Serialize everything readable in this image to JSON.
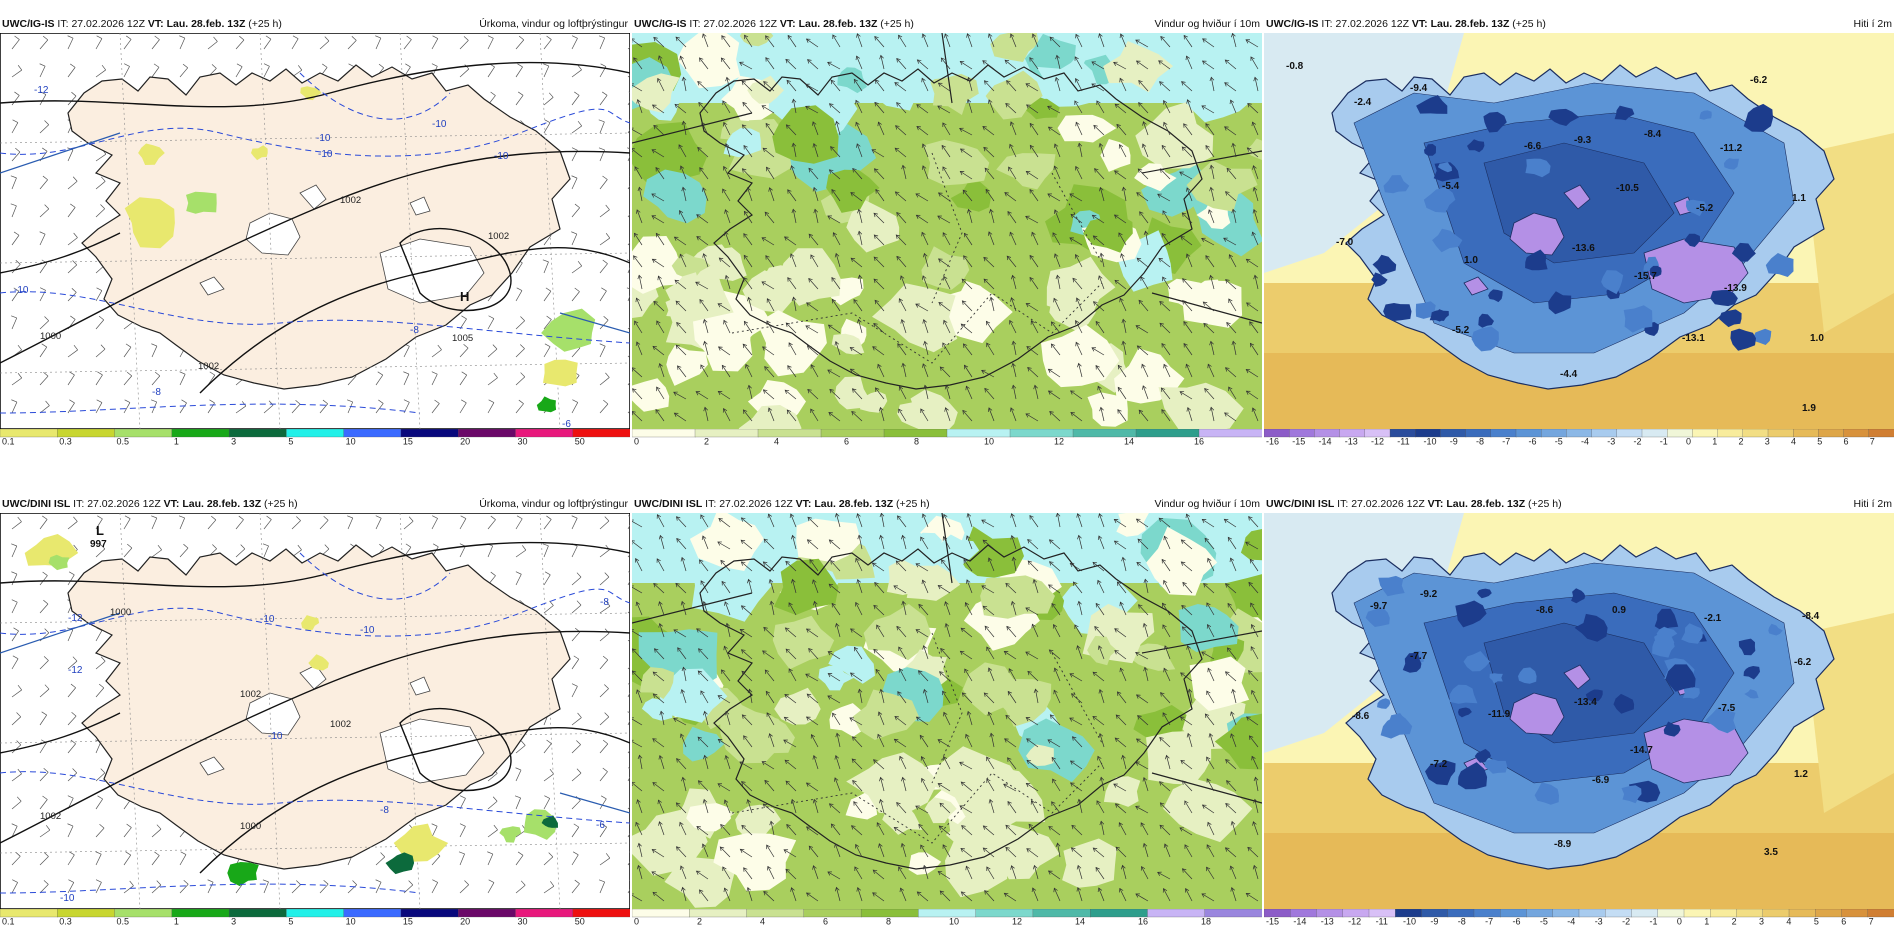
{
  "panels": [
    {
      "model": "UWC/IG-IS",
      "it_label": "IT:",
      "it": "27.02.2026 12Z",
      "vt_label": "VT:",
      "vt": "Lau. 28.feb. 13Z",
      "lead": "(+25 h)",
      "title": "Úrkoma, vindur og loftþrýstingur",
      "legend": [
        "0.1",
        "0.3",
        "0.5",
        "1",
        "3",
        "5",
        "10",
        "15",
        "20",
        "30",
        "50"
      ],
      "colors": [
        "#e8e86e",
        "#c8d630",
        "#a6e06a",
        "#18a818",
        "#0c6a3c",
        "#22f0e8",
        "#3a6aff",
        "#08087c",
        "#6a0868",
        "#e8187c",
        "#ee1010"
      ],
      "isobars": [
        "1002",
        "1002",
        "1002",
        "1000",
        "1005"
      ],
      "temps": [
        "-12",
        "-10",
        "-10",
        "-10",
        "-10",
        "-8",
        "-8",
        "-6",
        "-10"
      ],
      "high_letter": "H"
    },
    {
      "model": "UWC/IG-IS",
      "it_label": "IT:",
      "it": "27.02.2026 12Z",
      "vt_label": "VT:",
      "vt": "Lau. 28.feb. 13Z",
      "lead": "(+25 h)",
      "title": "Vindur og hviður í 10m",
      "legend": [
        "0",
        "2",
        "4",
        "6",
        "8",
        "10",
        "12",
        "14",
        "16"
      ],
      "colors": [
        "#fdfde8",
        "#e6f0c2",
        "#c9e191",
        "#a9cf5e",
        "#8abf3a",
        "#b8f2f2",
        "#7cd8cc",
        "#4fb9a8",
        "#2e9e8c",
        "#c8b4f5"
      ]
    },
    {
      "model": "UWC/IG-IS",
      "it_label": "IT:",
      "it": "27.02.2026 12Z",
      "vt_label": "VT:",
      "vt": "Lau. 28.feb. 13Z",
      "lead": "(+25 h)",
      "title": "Hiti í 2m",
      "legend": [
        "-16",
        "-15",
        "-14",
        "-13",
        "-12",
        "-11",
        "-10",
        "-9",
        "-8",
        "-7",
        "-6",
        "-5",
        "-4",
        "-3",
        "-2",
        "-1",
        "0",
        "1",
        "2",
        "3",
        "4",
        "5",
        "6",
        "7"
      ],
      "colors": [
        "#8c5cc8",
        "#a078dc",
        "#b490e6",
        "#c8a8f0",
        "#d8c0f6",
        "#2a4c9c",
        "#1c3c8c",
        "#2f5aa8",
        "#3a6cbc",
        "#4a80cc",
        "#5c94d6",
        "#74a6de",
        "#8cb8e6",
        "#a8cbee",
        "#c4ddf4",
        "#d8eaf2",
        "#f0f6d8",
        "#fbf5b4",
        "#f8ec9c",
        "#f2de84",
        "#eccc6c",
        "#e6ba58",
        "#dea648",
        "#d8923c",
        "#d07e32"
      ],
      "values": [
        "-0.8",
        "-2.4",
        "-9.4",
        "-5.4",
        "-6.6",
        "-9.3",
        "-8.4",
        "-11.2",
        "-6.2",
        "-10.5",
        "-5.2",
        "1.1",
        "-7.0",
        "1.0",
        "-13.6",
        "-15.7",
        "-13.9",
        "-5.2",
        "-13.1",
        "-4.4",
        "1.0",
        "1.9"
      ]
    },
    {
      "model": "UWC/DINI ISL",
      "it_label": "IT:",
      "it": "27.02.2026 12Z",
      "vt_label": "VT:",
      "vt": "Lau. 28.feb. 13Z",
      "lead": "(+25 h)",
      "title": "Úrkoma, vindur og loftþrýstingur",
      "legend": [
        "0.1",
        "0.3",
        "0.5",
        "1",
        "3",
        "5",
        "10",
        "15",
        "20",
        "30",
        "50"
      ],
      "colors": [
        "#e8e86e",
        "#c8d630",
        "#a6e06a",
        "#18a818",
        "#0c6a3c",
        "#22f0e8",
        "#3a6aff",
        "#08087c",
        "#6a0868",
        "#e8187c",
        "#ee1010"
      ],
      "isobars": [
        "1000",
        "1002",
        "1002",
        "1002",
        "1000"
      ],
      "temps": [
        "-12",
        "-10",
        "-12",
        "-10",
        "-8",
        "-8",
        "-6",
        "-10",
        "-10"
      ],
      "low_letter": "L",
      "low_value": "997"
    },
    {
      "model": "UWC/DINI ISL",
      "it_label": "IT:",
      "it": "27.02.2026 12Z",
      "vt_label": "VT:",
      "vt": "Lau. 28.feb. 13Z",
      "lead": "(+25 h)",
      "title": "Vindur og hviður í 10m",
      "legend": [
        "0",
        "2",
        "4",
        "6",
        "8",
        "10",
        "12",
        "14",
        "16",
        "18"
      ],
      "colors": [
        "#fdfde8",
        "#e6f0c2",
        "#c9e191",
        "#a9cf5e",
        "#8abf3a",
        "#b8f2f2",
        "#7cd8cc",
        "#4fb9a8",
        "#2e9e8c",
        "#c8b4f5",
        "#9a86de"
      ]
    },
    {
      "model": "UWC/DINI ISL",
      "it_label": "IT:",
      "it": "27.02.2026 12Z",
      "vt_label": "VT:",
      "vt": "Lau. 28.feb. 13Z",
      "lead": "(+25 h)",
      "title": "Hiti í 2m",
      "legend": [
        "-15",
        "-14",
        "-13",
        "-12",
        "-11",
        "-10",
        "-9",
        "-8",
        "-7",
        "-6",
        "-5",
        "-4",
        "-3",
        "-2",
        "-1",
        "0",
        "1",
        "2",
        "3",
        "4",
        "5",
        "6",
        "7"
      ],
      "colors": [
        "#8c5cc8",
        "#a078dc",
        "#b490e6",
        "#c8a8f0",
        "#d8c0f6",
        "#1c3c8c",
        "#2f5aa8",
        "#3a6cbc",
        "#4a80cc",
        "#5c94d6",
        "#74a6de",
        "#8cb8e6",
        "#a8cbee",
        "#c4ddf4",
        "#d8eaf2",
        "#f0f6d8",
        "#fbf5b4",
        "#f8ec9c",
        "#f2de84",
        "#eccc6c",
        "#e6ba58",
        "#dea648",
        "#d8923c",
        "#d07e32"
      ],
      "values": [
        "-9.7",
        "-9.2",
        "-8.6",
        "0.9",
        "-2.1",
        "-8.4",
        "-6.2",
        "-7.7",
        "-11.9",
        "-13.4",
        "-7.5",
        "-14.7",
        "-8.6",
        "-7.2",
        "-6.9",
        "1.2",
        "-8.9",
        "3.5"
      ]
    }
  ]
}
